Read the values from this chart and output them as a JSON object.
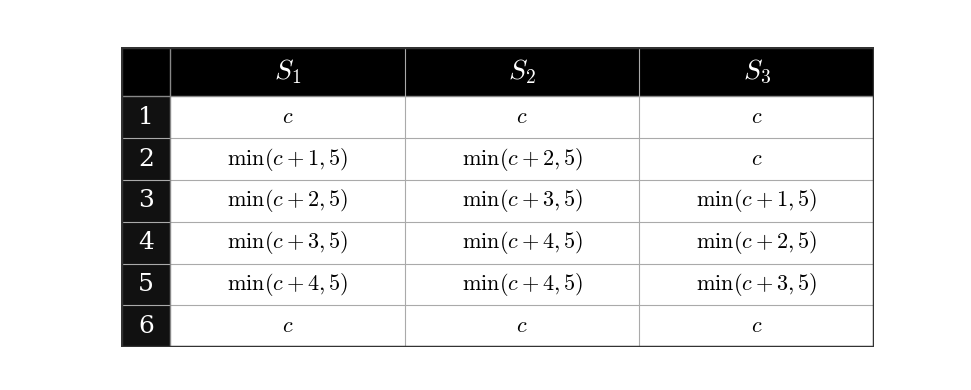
{
  "header_bg": "#000000",
  "header_fg": "#ffffff",
  "row_bg": "#ffffff",
  "row_fg": "#000000",
  "row_header_bg": "#111111",
  "row_header_fg": "#ffffff",
  "border_color": "#555555",
  "col_headers": [
    "$S_1$",
    "$S_2$",
    "$S_3$"
  ],
  "row_labels": [
    "1",
    "2",
    "3",
    "4",
    "5",
    "6"
  ],
  "cell_data": [
    [
      "$c$",
      "$c$",
      "$c$"
    ],
    [
      "$\\min(c+1,5)$",
      "$\\min(c+2,5)$",
      "$c$"
    ],
    [
      "$\\min(c+2,5)$",
      "$\\min(c+3,5)$",
      "$\\min(c+1,5)$"
    ],
    [
      "$\\min(c+3,5)$",
      "$\\min(c+4,5)$",
      "$\\min(c+2,5)$"
    ],
    [
      "$\\min(c+4,5)$",
      "$\\min(c+4,5)$",
      "$\\min(c+3,5)$"
    ],
    [
      "$c$",
      "$c$",
      "$c$"
    ]
  ],
  "figsize": [
    9.71,
    3.9
  ],
  "dpi": 100,
  "header_fontsize": 20,
  "cell_fontsize": 16,
  "row_label_fontsize": 18
}
